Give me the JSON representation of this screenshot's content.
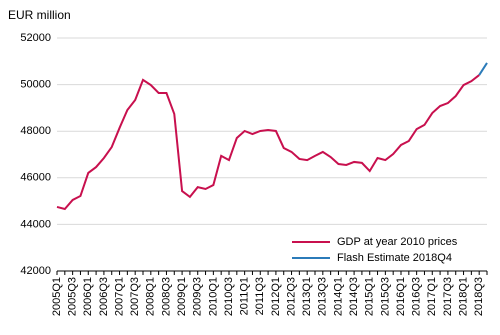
{
  "chart_data": {
    "type": "line",
    "ylabel": "EUR million",
    "categories": [
      "2005Q1",
      null,
      "2005Q3",
      null,
      "2006Q1",
      null,
      "2006Q3",
      null,
      "2007Q1",
      null,
      "2007Q3",
      null,
      "2008Q1",
      null,
      "2008Q3",
      null,
      "2009Q1",
      null,
      "2009Q3",
      null,
      "2010Q1",
      null,
      "2010Q3",
      null,
      "2011Q1",
      null,
      "2011Q3",
      null,
      "2012Q1",
      null,
      "2012Q3",
      null,
      "2013Q1",
      null,
      "2013Q3",
      null,
      "2014Q1",
      null,
      "2014Q3",
      null,
      "2015Q1",
      null,
      "2015Q3",
      null,
      "2016Q1",
      null,
      "2016Q3",
      null,
      "2017Q1",
      null,
      "2017Q3",
      null,
      "2018Q1",
      null,
      "2018Q3",
      null
    ],
    "series": [
      {
        "name": "GDP at year 2010 prices",
        "color": "#c8104e",
        "values": [
          44750,
          44660,
          45050,
          45220,
          46210,
          46460,
          46850,
          47320,
          48140,
          48910,
          49340,
          50200,
          49980,
          49640,
          49640,
          48740,
          45430,
          45180,
          45600,
          45520,
          45690,
          46940,
          46760,
          47710,
          48010,
          47880,
          48010,
          48050,
          48010,
          47280,
          47110,
          46810,
          46760,
          46940,
          47110,
          46890,
          46590,
          46550,
          46680,
          46640,
          46290,
          46850,
          46760,
          47020,
          47410,
          47580,
          48090,
          48270,
          48780,
          49080,
          49210,
          49510,
          49980,
          50150,
          50410,
          null
        ]
      },
      {
        "name": "Flash Estimate 2018Q4",
        "color": "#2b7bb9",
        "values": [
          null,
          null,
          null,
          null,
          null,
          null,
          null,
          null,
          null,
          null,
          null,
          null,
          null,
          null,
          null,
          null,
          null,
          null,
          null,
          null,
          null,
          null,
          null,
          null,
          null,
          null,
          null,
          null,
          null,
          null,
          null,
          null,
          null,
          null,
          null,
          null,
          null,
          null,
          null,
          null,
          null,
          null,
          null,
          null,
          null,
          null,
          null,
          null,
          null,
          null,
          null,
          null,
          null,
          null,
          50410,
          50930
        ]
      }
    ],
    "ylim": [
      42000,
      52000
    ],
    "yticks": [
      42000,
      44000,
      46000,
      48000,
      50000,
      52000
    ],
    "grid": true,
    "legend": "lower right"
  }
}
